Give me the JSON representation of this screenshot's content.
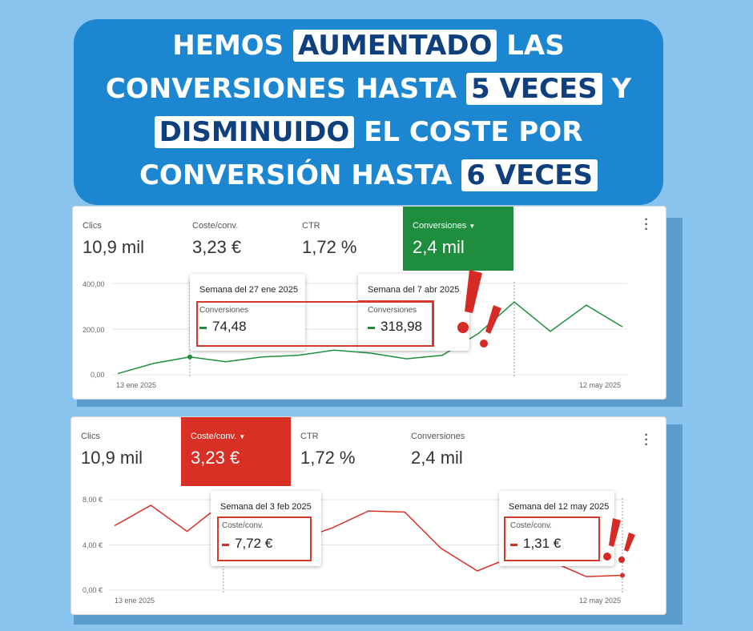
{
  "headline": {
    "line1_a": "HEMOS ",
    "line1_hl": "AUMENTADO",
    "line1_b": " LAS",
    "line2_a": "CONVERSIONES HASTA ",
    "line2_hl": "5 VECES",
    "line2_b": " Y",
    "line3_hl": "DISMINUIDO",
    "line3_b": " EL COSTE POR",
    "line4_a": "CONVERSIÓN HASTA ",
    "line4_hl": "6 VECES"
  },
  "colors": {
    "background": "#89c4ee",
    "banner": "#1d86d1",
    "green": "#1e8e3e",
    "red": "#d93025",
    "highlight_text": "#0f3f7c"
  },
  "panel1": {
    "metrics": [
      {
        "label": "Clics",
        "value": "10,9 mil"
      },
      {
        "label": "Coste/conv.",
        "value": "3,23 €"
      },
      {
        "label": "CTR",
        "value": "1,72 %"
      },
      {
        "label": "Conversiones",
        "value": "2,4 mil",
        "active": true,
        "icon": "dropdown-caret-icon"
      }
    ],
    "y_ticks": [
      "400,00",
      "200,00",
      "0,00"
    ],
    "x_start": "13 ene 2025",
    "x_end": "12 may 2025",
    "tooltip_a": {
      "title": "Semana del 27 ene 2025",
      "sub": "Conversiones",
      "value": "74,48"
    },
    "tooltip_b": {
      "title": "Semana del 7 abr 2025",
      "sub": "Conversiones",
      "value": "318,98"
    }
  },
  "panel2": {
    "metrics": [
      {
        "label": "Clics",
        "value": "10,9 mil"
      },
      {
        "label": "Coste/conv.",
        "value": "3,23 €",
        "active": true,
        "icon": "dropdown-caret-icon"
      },
      {
        "label": "CTR",
        "value": "1,72 %"
      },
      {
        "label": "Conversiones",
        "value": "2,4 mil"
      }
    ],
    "y_ticks": [
      "8,00 €",
      "4,00 €",
      "0,00 €"
    ],
    "x_start": "13 ene 2025",
    "x_end": "12 may 2025",
    "tooltip_a": {
      "title": "Semana del 3 feb 2025",
      "sub": "Coste/conv.",
      "value": "7,72 €"
    },
    "tooltip_b": {
      "title": "Semana del 12 may 2025",
      "sub": "Coste/conv.",
      "value": "1,31 €"
    }
  },
  "chart_data": [
    {
      "type": "line",
      "series": [
        {
          "values": [
            5,
            50,
            78,
            57,
            78,
            85,
            108,
            95,
            70,
            85,
            180,
            319,
            190,
            305,
            210
          ]
        }
      ],
      "y_ticks": [
        "400,00",
        "200,00",
        "0,00"
      ],
      "x_tick_labels": [
        "13 ene 2025",
        "12 may 2025"
      ],
      "ylim": [
        0,
        400
      ],
      "grid": true,
      "color": "#1e8e3e"
    },
    {
      "type": "line",
      "series": [
        {
          "values": [
            5.7,
            7.5,
            5.2,
            7.72,
            6.8,
            4.4,
            5.5,
            7.0,
            6.9,
            3.7,
            1.7,
            3.0,
            2.6,
            1.2,
            1.31
          ]
        }
      ],
      "y_ticks": [
        "8,00 €",
        "4,00 €",
        "0,00 €"
      ],
      "x_tick_labels": [
        "13 ene 2025",
        "12 may 2025"
      ],
      "ylim": [
        0,
        8
      ],
      "grid": true,
      "color": "#d93025"
    }
  ]
}
